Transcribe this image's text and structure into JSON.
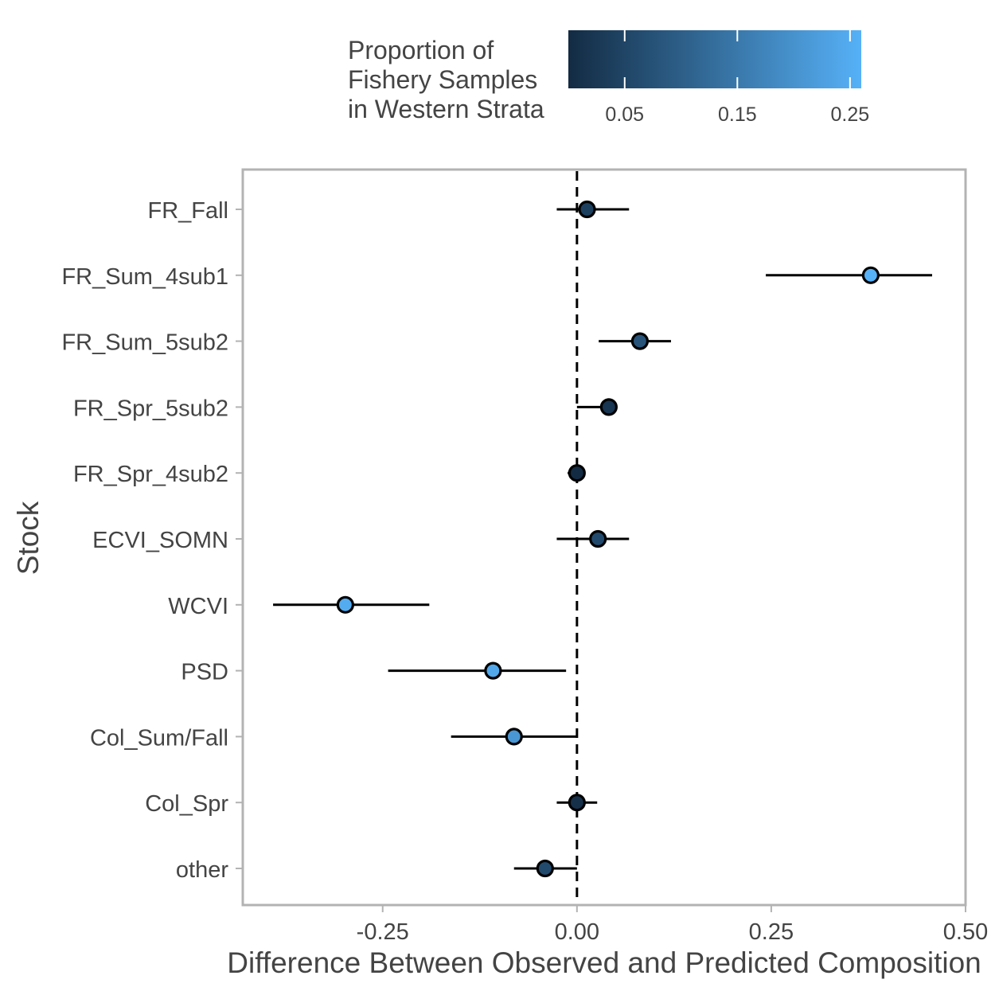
{
  "legend": {
    "title_lines": [
      "Proportion of",
      "Fishery Samples",
      "in Western Strata"
    ],
    "ticks": [
      "0.05",
      "0.15",
      "0.25"
    ],
    "tick_values": [
      0.05,
      0.15,
      0.25
    ],
    "range": [
      0.0,
      0.26
    ],
    "color_low": "#132B43",
    "color_high": "#56B1F7"
  },
  "chart_data": {
    "type": "scatter",
    "subtype": "point-range (dot with horizontal interval)",
    "xlabel": "Difference Between Observed and Predicted Composition",
    "ylabel": "Stock",
    "xlim": [
      -0.43,
      0.5
    ],
    "x_ticks": [
      "-0.25",
      "0.00",
      "0.25",
      "0.50"
    ],
    "x_tick_values": [
      -0.25,
      0.0,
      0.25,
      0.5
    ],
    "reference_line": {
      "x": 0.0,
      "style": "dashed"
    },
    "grid": false,
    "legend_position": "top",
    "categories": [
      "FR_Fall",
      "FR_Sum_4sub1",
      "FR_Sum_5sub2",
      "FR_Spr_5sub2",
      "FR_Spr_4sub2",
      "ECVI_SOMN",
      "WCVI",
      "PSD",
      "Col_Sum/Fall",
      "Col_Spr",
      "other"
    ],
    "points": [
      {
        "stock": "FR_Fall",
        "x": 0.013,
        "lo": -0.026,
        "hi": 0.067,
        "prop": 0.04
      },
      {
        "stock": "FR_Sum_4sub1",
        "x": 0.378,
        "lo": 0.243,
        "hi": 0.457,
        "prop": 0.26
      },
      {
        "stock": "FR_Sum_5sub2",
        "x": 0.081,
        "lo": 0.028,
        "hi": 0.121,
        "prop": 0.08
      },
      {
        "stock": "FR_Spr_5sub2",
        "x": 0.041,
        "lo": 0.0,
        "hi": 0.052,
        "prop": 0.02
      },
      {
        "stock": "FR_Spr_4sub2",
        "x": 0.0,
        "lo": -0.012,
        "hi": 0.007,
        "prop": 0.0
      },
      {
        "stock": "ECVI_SOMN",
        "x": 0.027,
        "lo": -0.026,
        "hi": 0.067,
        "prop": 0.06
      },
      {
        "stock": "WCVI",
        "x": -0.298,
        "lo": -0.391,
        "hi": -0.19,
        "prop": 0.25
      },
      {
        "stock": "PSD",
        "x": -0.108,
        "lo": -0.243,
        "hi": -0.014,
        "prop": 0.24
      },
      {
        "stock": "Col_Sum/Fall",
        "x": -0.081,
        "lo": -0.162,
        "hi": 0.0,
        "prop": 0.21
      },
      {
        "stock": "Col_Spr",
        "x": 0.0,
        "lo": -0.026,
        "hi": 0.026,
        "prop": 0.01
      },
      {
        "stock": "other",
        "x": -0.041,
        "lo": -0.081,
        "hi": 0.0,
        "prop": 0.06
      }
    ]
  }
}
